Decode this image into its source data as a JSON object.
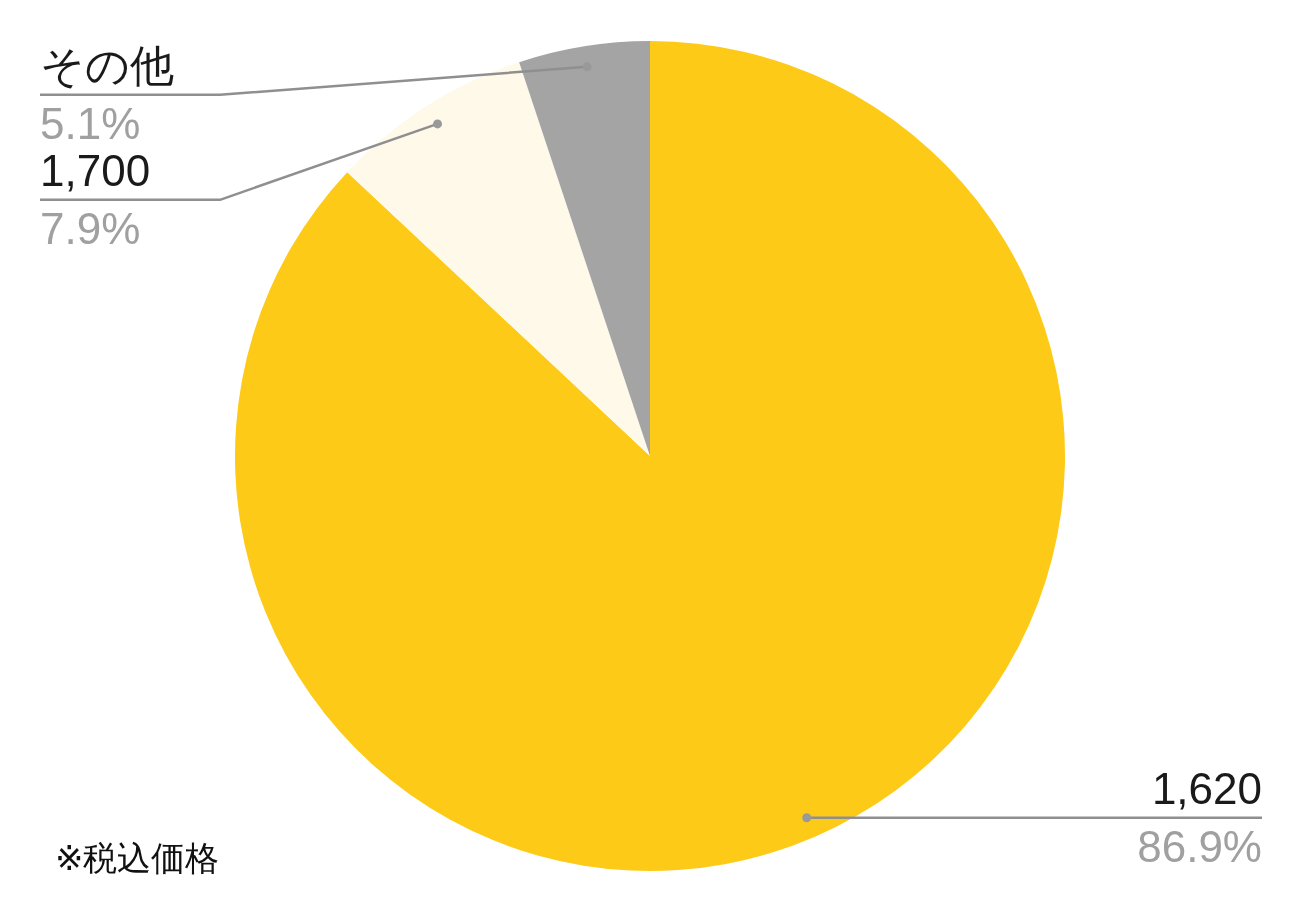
{
  "chart_data": {
    "type": "pie",
    "categories": [
      "1,620",
      "1,700",
      "その他"
    ],
    "values": [
      86.9,
      7.9,
      5.1
    ],
    "colors": [
      "#fdca17",
      "#fef9e8",
      "#a4a4a4"
    ],
    "value_labels": [
      "86.9%",
      "7.9%",
      "5.1%"
    ],
    "annotations": [
      "※税込価格"
    ]
  }
}
